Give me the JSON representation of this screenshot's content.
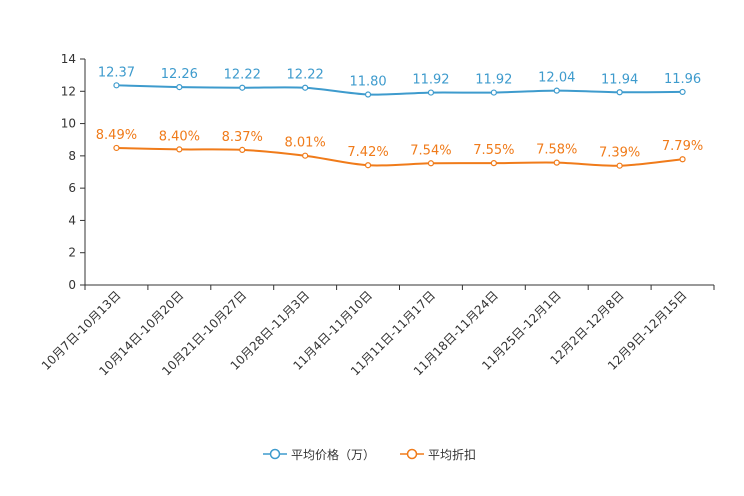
{
  "chart_data": {
    "type": "line",
    "categories": [
      "10月7日-10月13日",
      "10月14日-10月20日",
      "10月21日-10月27日",
      "10月28日-11月3日",
      "11月4日-11月10日",
      "11月11日-11月17日",
      "11月18日-11月24日",
      "11月25日-12月1日",
      "12月2日-12月8日",
      "12月9日-12月15日"
    ],
    "series": [
      {
        "name": "平均价格（万）",
        "color": "#3e9bcd",
        "values": [
          12.37,
          12.26,
          12.22,
          12.22,
          11.8,
          11.92,
          11.92,
          12.04,
          11.94,
          11.96
        ],
        "labels": [
          "12.37",
          "12.26",
          "12.22",
          "12.22",
          "11.80",
          "11.92",
          "11.92",
          "12.04",
          "11.94",
          "11.96"
        ]
      },
      {
        "name": "平均折扣",
        "color": "#f07b1a",
        "values": [
          8.49,
          8.4,
          8.37,
          8.01,
          7.42,
          7.54,
          7.55,
          7.58,
          7.39,
          7.79
        ],
        "labels": [
          "8.49%",
          "8.40%",
          "8.37%",
          "8.01%",
          "7.42%",
          "7.54%",
          "7.55%",
          "7.58%",
          "7.39%",
          "7.79%"
        ]
      }
    ],
    "yticks": [
      "0",
      "2",
      "4",
      "6",
      "8",
      "10",
      "12",
      "14"
    ],
    "ylim": [
      0,
      14
    ],
    "legend": [
      "平均价格（万）",
      "平均折扣"
    ]
  }
}
